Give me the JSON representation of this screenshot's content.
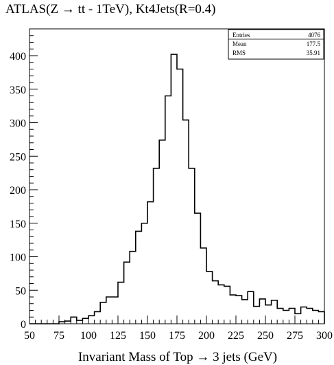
{
  "chart_data": {
    "type": "bar",
    "title": "ATLAS(Z → tt - 1TeV), Kt4Jets(R=0.4)",
    "xlabel": "Invariant Mass of Top → 3 jets (GeV)",
    "ylabel": "",
    "xlim": [
      50,
      300
    ],
    "ylim": [
      0,
      440
    ],
    "grid": false,
    "xticks": [
      50,
      75,
      100,
      125,
      150,
      175,
      200,
      225,
      250,
      275,
      300
    ],
    "yticks": [
      0,
      50,
      100,
      150,
      200,
      250,
      300,
      350,
      400
    ],
    "xtick_labels": [
      "50",
      "75",
      "100",
      "125",
      "150",
      "175",
      "200",
      "225",
      "250",
      "275",
      "300"
    ],
    "ytick_labels": [
      "0",
      "50",
      "100",
      "150",
      "200",
      "250",
      "300",
      "350",
      "400"
    ],
    "bin_edges_start": 50,
    "bin_width": 5,
    "values": [
      0,
      0,
      0,
      0,
      0,
      3,
      4,
      10,
      5,
      8,
      12,
      18,
      32,
      40,
      40,
      62,
      92,
      108,
      138,
      150,
      182,
      232,
      274,
      340,
      402,
      380,
      304,
      232,
      165,
      113,
      78,
      64,
      58,
      56,
      43,
      42,
      36,
      48,
      26,
      37,
      28,
      35,
      23,
      20,
      23,
      15,
      25,
      23,
      20,
      18
    ],
    "stats": {
      "entries_label": "Entries",
      "entries_value": "4076",
      "mean_label": "Mean",
      "mean_value": "177.5",
      "rms_label": "RMS",
      "rms_value": "35.91"
    }
  }
}
